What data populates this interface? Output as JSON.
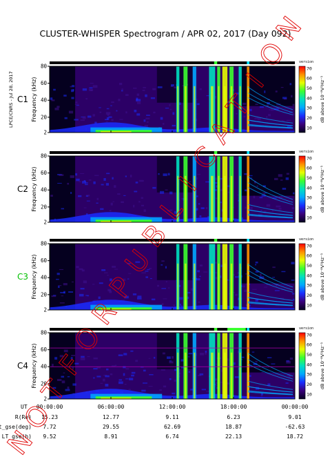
{
  "header": {
    "title": "CLUSTER-WHISPER Spectrogram / APR 02, 2017 (Day 092)",
    "side_credit": "LPCE/CNRS - Jul 28, 2017"
  },
  "watermark": {
    "text": "NOT FOR PUBLICATION",
    "color": "#e00000"
  },
  "colorbar": {
    "label": "dB above 10⁻⁸V²Hz⁻¹",
    "tag": "version",
    "ticks": [
      10,
      20,
      30,
      40,
      50,
      60,
      70
    ],
    "stops": [
      "#05001f",
      "#3a007a",
      "#1a2cff",
      "#00a8ff",
      "#00e0c0",
      "#3cff30",
      "#e8ff00",
      "#ff9000",
      "#ff0000"
    ]
  },
  "colors": {
    "bg_dark": "#05001f",
    "bg_mid": "#2c0066",
    "bg_mid2": "#3f1090",
    "spacecraft_label_active": "#00c000",
    "spacecraft_label_default": "#000000"
  },
  "chart_data": {
    "type": "heatmap",
    "ylabel": "Frequency (kHz)",
    "ylim": [
      2,
      80
    ],
    "yticks": [
      2,
      20,
      40,
      60,
      80
    ],
    "x_tick_labels": [
      "00:00:00",
      "06:00:00",
      "12:00:00",
      "18:00:00",
      "00:00:00"
    ],
    "panels": [
      {
        "name": "C1",
        "highlight": false
      },
      {
        "name": "C2",
        "highlight": false
      },
      {
        "name": "C3",
        "highlight": true
      },
      {
        "name": "C4",
        "highlight": false
      }
    ],
    "orbit": [
      {
        "label": "UT",
        "values": [
          "00:00:00",
          "06:00:00",
          "12:00:00",
          "18:00:00",
          "00:00:00"
        ]
      },
      {
        "label": "R(Re)",
        "values": [
          "15.23",
          "12.77",
          "9.11",
          "6.23",
          "9.01"
        ]
      },
      {
        "label": "Lat_gse(deg)",
        "values": [
          "7.72",
          "29.55",
          "62.69",
          "18.87",
          "-62.63"
        ]
      },
      {
        "label": "LT_gse(h)",
        "values": [
          "9.52",
          "8.91",
          "6.74",
          "22.13",
          "18.72"
        ]
      }
    ]
  }
}
